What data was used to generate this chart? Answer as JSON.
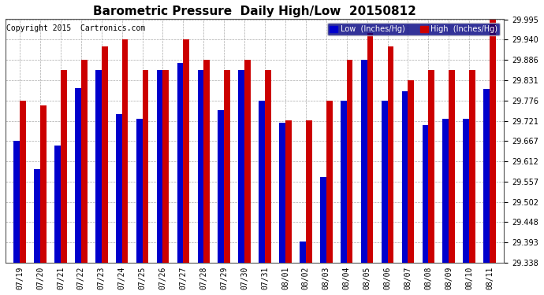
{
  "title": "Barometric Pressure  Daily High/Low  20150812",
  "copyright": "Copyright 2015  Cartronics.com",
  "legend_low": "Low  (Inches/Hg)",
  "legend_high": "High  (Inches/Hg)",
  "dates": [
    "07/19",
    "07/20",
    "07/21",
    "07/22",
    "07/23",
    "07/24",
    "07/25",
    "07/26",
    "07/27",
    "07/28",
    "07/29",
    "07/30",
    "07/31",
    "08/01",
    "08/02",
    "08/03",
    "08/04",
    "08/05",
    "08/06",
    "08/07",
    "08/08",
    "08/09",
    "08/10",
    "08/11"
  ],
  "low": [
    29.667,
    29.59,
    29.655,
    29.81,
    29.858,
    29.74,
    29.726,
    29.858,
    29.878,
    29.858,
    29.75,
    29.858,
    29.776,
    29.716,
    29.394,
    29.57,
    29.776,
    29.886,
    29.776,
    29.8,
    29.71,
    29.726,
    29.726,
    29.808
  ],
  "high": [
    29.776,
    29.762,
    29.858,
    29.886,
    29.922,
    29.94,
    29.858,
    29.858,
    29.94,
    29.886,
    29.858,
    29.886,
    29.858,
    29.722,
    29.722,
    29.776,
    29.886,
    29.958,
    29.922,
    29.831,
    29.858,
    29.858,
    29.858,
    29.995
  ],
  "ylim_min": 29.338,
  "ylim_max": 29.995,
  "yticks": [
    29.338,
    29.393,
    29.448,
    29.502,
    29.557,
    29.612,
    29.667,
    29.721,
    29.776,
    29.831,
    29.886,
    29.94,
    29.995
  ],
  "low_color": "#0000cc",
  "high_color": "#cc0000",
  "bg_color": "#ffffff",
  "grid_color": "#aaaaaa",
  "title_fontsize": 11,
  "copyright_fontsize": 7,
  "legend_fontsize": 7,
  "tick_fontsize": 7
}
